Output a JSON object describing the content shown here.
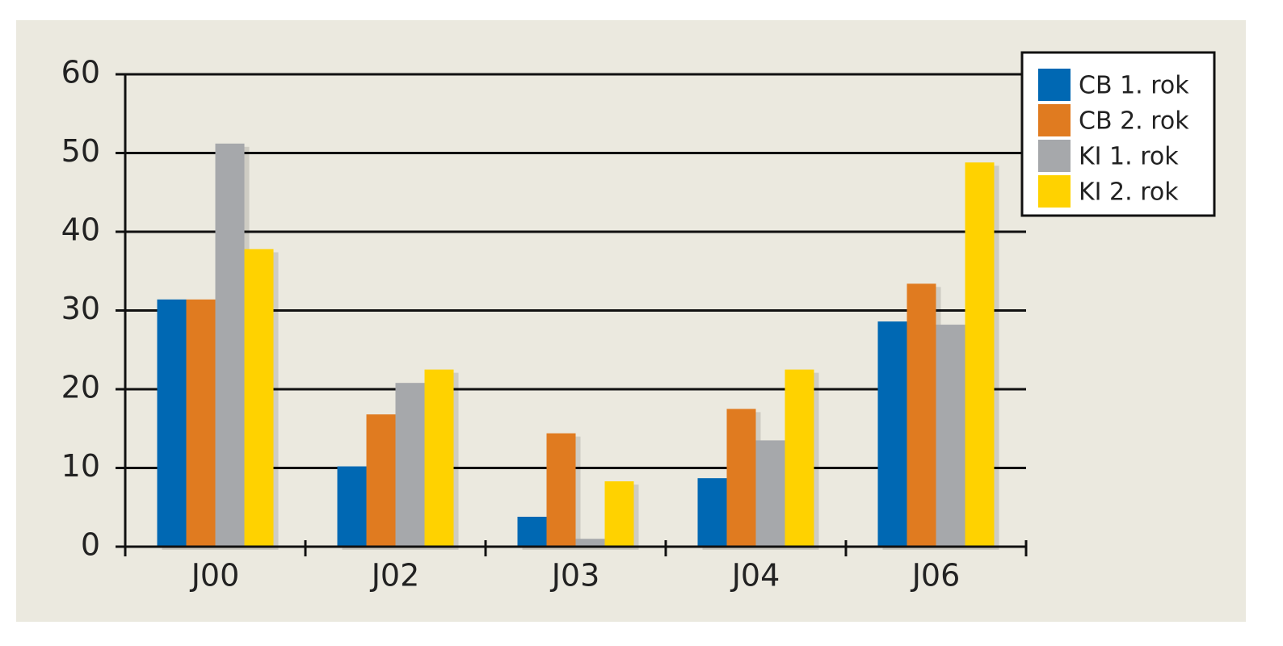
{
  "chart_data": {
    "type": "bar",
    "categories": [
      "J00",
      "J02",
      "J03",
      "J04",
      "J06"
    ],
    "series": [
      {
        "name": "CB 1. rok",
        "color": "#0068b3",
        "values": [
          31.4,
          10.2,
          3.8,
          8.7,
          28.6
        ]
      },
      {
        "name": "CB 2. rok",
        "color": "#e07b20",
        "values": [
          31.4,
          16.8,
          14.4,
          17.5,
          33.4
        ]
      },
      {
        "name": "KI 1. rok",
        "color": "#a6a8ab",
        "values": [
          51.2,
          20.8,
          1.0,
          13.5,
          28.2
        ]
      },
      {
        "name": "KI 2. rok",
        "color": "#ffd200",
        "values": [
          37.8,
          22.5,
          8.3,
          22.5,
          48.8
        ]
      }
    ],
    "ylim": [
      0,
      60
    ],
    "yticks": [
      0,
      10,
      20,
      30,
      40,
      50,
      60
    ],
    "grid": true,
    "legend": "top-right"
  }
}
